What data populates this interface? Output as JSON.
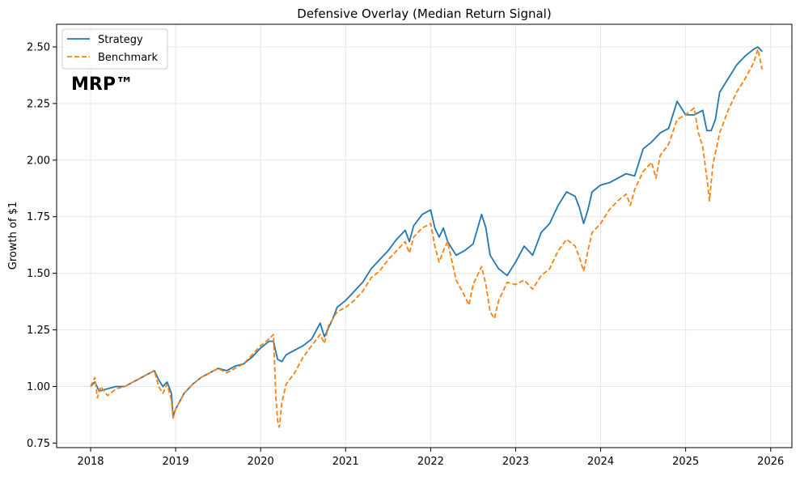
{
  "chart_data": {
    "type": "line",
    "title": "Defensive Overlay (Median Return Signal)",
    "xlabel": "",
    "ylabel": "Growth of $1",
    "watermark": "MRP™",
    "xlim": [
      2017.6,
      2026.25
    ],
    "ylim": [
      0.73,
      2.6
    ],
    "xticks": [
      2018,
      2019,
      2020,
      2021,
      2022,
      2023,
      2024,
      2025,
      2026
    ],
    "xtick_labels": [
      "2018",
      "2019",
      "2020",
      "2021",
      "2022",
      "2023",
      "2024",
      "2025",
      "2026"
    ],
    "yticks": [
      0.75,
      1.0,
      1.25,
      1.5,
      1.75,
      2.0,
      2.25,
      2.5
    ],
    "ytick_labels": [
      "0.75",
      "1.00",
      "1.25",
      "1.50",
      "1.75",
      "2.00",
      "2.25",
      "2.50"
    ],
    "grid": true,
    "legend_position": "upper-left",
    "series": [
      {
        "name": "Strategy",
        "color": "#1f77b4",
        "style": "solid",
        "points": [
          [
            2018.0,
            1.0
          ],
          [
            2018.05,
            1.02
          ],
          [
            2018.1,
            0.98
          ],
          [
            2018.2,
            0.99
          ],
          [
            2018.3,
            1.0
          ],
          [
            2018.4,
            1.0
          ],
          [
            2018.5,
            1.02
          ],
          [
            2018.6,
            1.04
          ],
          [
            2018.7,
            1.06
          ],
          [
            2018.75,
            1.07
          ],
          [
            2018.8,
            1.03
          ],
          [
            2018.85,
            1.0
          ],
          [
            2018.9,
            1.02
          ],
          [
            2018.95,
            0.97
          ],
          [
            2018.97,
            0.87
          ],
          [
            2019.0,
            0.9
          ],
          [
            2019.1,
            0.97
          ],
          [
            2019.2,
            1.01
          ],
          [
            2019.3,
            1.04
          ],
          [
            2019.4,
            1.06
          ],
          [
            2019.5,
            1.08
          ],
          [
            2019.6,
            1.07
          ],
          [
            2019.7,
            1.09
          ],
          [
            2019.8,
            1.1
          ],
          [
            2019.9,
            1.13
          ],
          [
            2020.0,
            1.17
          ],
          [
            2020.1,
            1.2
          ],
          [
            2020.15,
            1.2
          ],
          [
            2020.2,
            1.12
          ],
          [
            2020.25,
            1.11
          ],
          [
            2020.3,
            1.14
          ],
          [
            2020.4,
            1.16
          ],
          [
            2020.5,
            1.18
          ],
          [
            2020.6,
            1.21
          ],
          [
            2020.7,
            1.28
          ],
          [
            2020.75,
            1.22
          ],
          [
            2020.8,
            1.26
          ],
          [
            2020.85,
            1.3
          ],
          [
            2020.9,
            1.35
          ],
          [
            2021.0,
            1.38
          ],
          [
            2021.1,
            1.42
          ],
          [
            2021.2,
            1.46
          ],
          [
            2021.3,
            1.52
          ],
          [
            2021.4,
            1.56
          ],
          [
            2021.5,
            1.6
          ],
          [
            2021.6,
            1.65
          ],
          [
            2021.7,
            1.69
          ],
          [
            2021.75,
            1.64
          ],
          [
            2021.8,
            1.71
          ],
          [
            2021.9,
            1.76
          ],
          [
            2022.0,
            1.78
          ],
          [
            2022.05,
            1.7
          ],
          [
            2022.1,
            1.66
          ],
          [
            2022.15,
            1.7
          ],
          [
            2022.2,
            1.64
          ],
          [
            2022.3,
            1.58
          ],
          [
            2022.4,
            1.6
          ],
          [
            2022.5,
            1.63
          ],
          [
            2022.6,
            1.76
          ],
          [
            2022.65,
            1.7
          ],
          [
            2022.7,
            1.58
          ],
          [
            2022.8,
            1.52
          ],
          [
            2022.9,
            1.49
          ],
          [
            2023.0,
            1.55
          ],
          [
            2023.1,
            1.62
          ],
          [
            2023.2,
            1.58
          ],
          [
            2023.3,
            1.68
          ],
          [
            2023.4,
            1.72
          ],
          [
            2023.5,
            1.8
          ],
          [
            2023.6,
            1.86
          ],
          [
            2023.7,
            1.84
          ],
          [
            2023.75,
            1.79
          ],
          [
            2023.8,
            1.72
          ],
          [
            2023.85,
            1.78
          ],
          [
            2023.9,
            1.86
          ],
          [
            2024.0,
            1.89
          ],
          [
            2024.1,
            1.9
          ],
          [
            2024.2,
            1.92
          ],
          [
            2024.3,
            1.94
          ],
          [
            2024.4,
            1.93
          ],
          [
            2024.5,
            2.05
          ],
          [
            2024.6,
            2.08
          ],
          [
            2024.7,
            2.12
          ],
          [
            2024.8,
            2.14
          ],
          [
            2024.9,
            2.26
          ],
          [
            2025.0,
            2.2
          ],
          [
            2025.1,
            2.2
          ],
          [
            2025.2,
            2.22
          ],
          [
            2025.25,
            2.13
          ],
          [
            2025.3,
            2.13
          ],
          [
            2025.35,
            2.18
          ],
          [
            2025.4,
            2.3
          ],
          [
            2025.5,
            2.36
          ],
          [
            2025.6,
            2.42
          ],
          [
            2025.7,
            2.46
          ],
          [
            2025.8,
            2.49
          ],
          [
            2025.85,
            2.5
          ],
          [
            2025.9,
            2.48
          ]
        ]
      },
      {
        "name": "Benchmark",
        "color": "#ff7f0e",
        "style": "dashed",
        "points": [
          [
            2018.0,
            1.0
          ],
          [
            2018.05,
            1.04
          ],
          [
            2018.08,
            0.95
          ],
          [
            2018.12,
            1.0
          ],
          [
            2018.2,
            0.96
          ],
          [
            2018.3,
            0.99
          ],
          [
            2018.4,
            1.0
          ],
          [
            2018.5,
            1.02
          ],
          [
            2018.6,
            1.04
          ],
          [
            2018.7,
            1.06
          ],
          [
            2018.75,
            1.07
          ],
          [
            2018.8,
            1.0
          ],
          [
            2018.85,
            0.97
          ],
          [
            2018.9,
            1.01
          ],
          [
            2018.95,
            0.94
          ],
          [
            2018.97,
            0.86
          ],
          [
            2019.0,
            0.9
          ],
          [
            2019.1,
            0.97
          ],
          [
            2019.2,
            1.01
          ],
          [
            2019.3,
            1.04
          ],
          [
            2019.4,
            1.06
          ],
          [
            2019.5,
            1.08
          ],
          [
            2019.6,
            1.06
          ],
          [
            2019.7,
            1.08
          ],
          [
            2019.8,
            1.1
          ],
          [
            2019.9,
            1.14
          ],
          [
            2020.0,
            1.18
          ],
          [
            2020.1,
            1.21
          ],
          [
            2020.15,
            1.23
          ],
          [
            2020.18,
            0.95
          ],
          [
            2020.2,
            0.85
          ],
          [
            2020.22,
            0.82
          ],
          [
            2020.25,
            0.93
          ],
          [
            2020.3,
            1.01
          ],
          [
            2020.4,
            1.06
          ],
          [
            2020.5,
            1.13
          ],
          [
            2020.6,
            1.18
          ],
          [
            2020.7,
            1.23
          ],
          [
            2020.75,
            1.19
          ],
          [
            2020.8,
            1.27
          ],
          [
            2020.9,
            1.33
          ],
          [
            2021.0,
            1.35
          ],
          [
            2021.1,
            1.38
          ],
          [
            2021.2,
            1.42
          ],
          [
            2021.3,
            1.48
          ],
          [
            2021.4,
            1.51
          ],
          [
            2021.5,
            1.56
          ],
          [
            2021.6,
            1.6
          ],
          [
            2021.7,
            1.64
          ],
          [
            2021.75,
            1.59
          ],
          [
            2021.8,
            1.66
          ],
          [
            2021.9,
            1.7
          ],
          [
            2022.0,
            1.72
          ],
          [
            2022.05,
            1.62
          ],
          [
            2022.1,
            1.55
          ],
          [
            2022.15,
            1.6
          ],
          [
            2022.2,
            1.64
          ],
          [
            2022.3,
            1.47
          ],
          [
            2022.4,
            1.4
          ],
          [
            2022.45,
            1.36
          ],
          [
            2022.5,
            1.45
          ],
          [
            2022.6,
            1.53
          ],
          [
            2022.65,
            1.45
          ],
          [
            2022.7,
            1.33
          ],
          [
            2022.75,
            1.3
          ],
          [
            2022.8,
            1.38
          ],
          [
            2022.9,
            1.46
          ],
          [
            2023.0,
            1.45
          ],
          [
            2023.1,
            1.47
          ],
          [
            2023.2,
            1.43
          ],
          [
            2023.3,
            1.49
          ],
          [
            2023.4,
            1.52
          ],
          [
            2023.5,
            1.6
          ],
          [
            2023.6,
            1.65
          ],
          [
            2023.7,
            1.62
          ],
          [
            2023.75,
            1.57
          ],
          [
            2023.8,
            1.51
          ],
          [
            2023.85,
            1.6
          ],
          [
            2023.9,
            1.68
          ],
          [
            2024.0,
            1.72
          ],
          [
            2024.1,
            1.78
          ],
          [
            2024.2,
            1.82
          ],
          [
            2024.3,
            1.85
          ],
          [
            2024.35,
            1.8
          ],
          [
            2024.4,
            1.87
          ],
          [
            2024.5,
            1.95
          ],
          [
            2024.6,
            1.99
          ],
          [
            2024.65,
            1.92
          ],
          [
            2024.7,
            2.02
          ],
          [
            2024.8,
            2.07
          ],
          [
            2024.9,
            2.18
          ],
          [
            2025.0,
            2.2
          ],
          [
            2025.1,
            2.23
          ],
          [
            2025.15,
            2.12
          ],
          [
            2025.2,
            2.06
          ],
          [
            2025.25,
            1.92
          ],
          [
            2025.28,
            1.82
          ],
          [
            2025.32,
            1.98
          ],
          [
            2025.4,
            2.12
          ],
          [
            2025.5,
            2.22
          ],
          [
            2025.6,
            2.3
          ],
          [
            2025.7,
            2.36
          ],
          [
            2025.8,
            2.43
          ],
          [
            2025.85,
            2.49
          ],
          [
            2025.9,
            2.4
          ]
        ]
      }
    ]
  }
}
